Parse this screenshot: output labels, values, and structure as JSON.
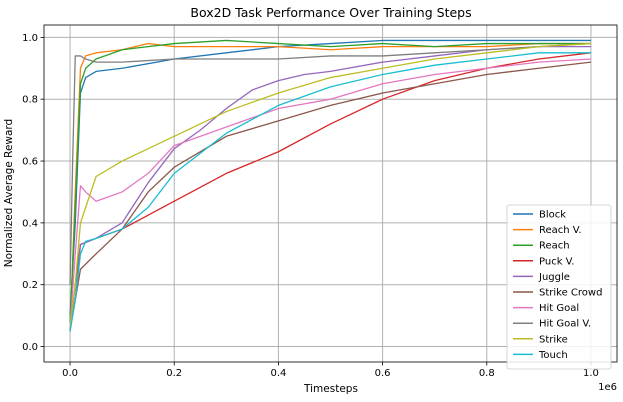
{
  "chart_data": {
    "type": "line",
    "title": "Box2D Task Performance Over Training Steps",
    "xlabel": "Timesteps",
    "ylabel": "Normalized Average Reward",
    "x_offset_label": "1e6",
    "xlim": [
      -0.05,
      1.05
    ],
    "ylim": [
      -0.05,
      1.04
    ],
    "xticks": [
      0.0,
      0.2,
      0.4,
      0.6,
      0.8,
      1.0
    ],
    "xtick_labels": [
      "0.0",
      "0.2",
      "0.4",
      "0.6",
      "0.8",
      "1.0"
    ],
    "yticks": [
      0.0,
      0.2,
      0.4,
      0.6,
      0.8,
      1.0
    ],
    "ytick_labels": [
      "0.0",
      "0.2",
      "0.4",
      "0.6",
      "0.8",
      "1.0"
    ],
    "grid": true,
    "legend_position": "lower-right",
    "series": [
      {
        "name": "Block",
        "color": "#1f77b4",
        "x": [
          0,
          0.01,
          0.02,
          0.03,
          0.05,
          0.1,
          0.2,
          0.3,
          0.4,
          0.5,
          0.6,
          0.7,
          0.8,
          0.9,
          1.0
        ],
        "y": [
          0.1,
          0.4,
          0.82,
          0.87,
          0.89,
          0.9,
          0.93,
          0.95,
          0.97,
          0.98,
          0.99,
          0.99,
          0.99,
          0.99,
          0.99
        ]
      },
      {
        "name": "Reach V.",
        "color": "#ff7f0e",
        "x": [
          0,
          0.01,
          0.02,
          0.03,
          0.05,
          0.1,
          0.15,
          0.2,
          0.3,
          0.4,
          0.5,
          0.6,
          0.7,
          0.8,
          0.9,
          1.0
        ],
        "y": [
          0.05,
          0.5,
          0.9,
          0.94,
          0.95,
          0.96,
          0.98,
          0.97,
          0.97,
          0.97,
          0.96,
          0.97,
          0.97,
          0.97,
          0.98,
          0.98
        ]
      },
      {
        "name": "Reach",
        "color": "#2ca02c",
        "x": [
          0,
          0.01,
          0.02,
          0.03,
          0.05,
          0.1,
          0.2,
          0.3,
          0.4,
          0.5,
          0.6,
          0.7,
          0.8,
          0.9,
          1.0
        ],
        "y": [
          0.08,
          0.45,
          0.85,
          0.9,
          0.93,
          0.96,
          0.98,
          0.99,
          0.98,
          0.97,
          0.98,
          0.97,
          0.98,
          0.98,
          0.98
        ]
      },
      {
        "name": "Puck V.",
        "color": "#d62728",
        "x": [
          0,
          0.01,
          0.02,
          0.05,
          0.1,
          0.2,
          0.3,
          0.4,
          0.5,
          0.6,
          0.7,
          0.8,
          0.9,
          1.0
        ],
        "y": [
          0.05,
          0.2,
          0.33,
          0.35,
          0.38,
          0.47,
          0.56,
          0.63,
          0.72,
          0.8,
          0.86,
          0.9,
          0.93,
          0.95
        ]
      },
      {
        "name": "Juggle",
        "color": "#9467bd",
        "x": [
          0,
          0.01,
          0.02,
          0.05,
          0.1,
          0.15,
          0.2,
          0.25,
          0.3,
          0.35,
          0.4,
          0.45,
          0.5,
          0.6,
          0.7,
          0.8,
          0.9,
          1.0
        ],
        "y": [
          0.05,
          0.15,
          0.33,
          0.35,
          0.4,
          0.53,
          0.64,
          0.7,
          0.77,
          0.83,
          0.86,
          0.88,
          0.89,
          0.92,
          0.94,
          0.96,
          0.97,
          0.97
        ]
      },
      {
        "name": "Strike Crowd",
        "color": "#8c564b",
        "x": [
          0,
          0.01,
          0.02,
          0.05,
          0.1,
          0.15,
          0.2,
          0.3,
          0.4,
          0.5,
          0.6,
          0.7,
          0.8,
          0.9,
          1.0
        ],
        "y": [
          0.06,
          0.15,
          0.25,
          0.3,
          0.38,
          0.5,
          0.58,
          0.68,
          0.73,
          0.78,
          0.82,
          0.85,
          0.88,
          0.9,
          0.92
        ]
      },
      {
        "name": "Hit Goal",
        "color": "#e377c2",
        "x": [
          0,
          0.01,
          0.02,
          0.03,
          0.05,
          0.1,
          0.15,
          0.2,
          0.3,
          0.4,
          0.5,
          0.6,
          0.7,
          0.8,
          0.9,
          1.0
        ],
        "y": [
          0.06,
          0.3,
          0.52,
          0.5,
          0.47,
          0.5,
          0.56,
          0.65,
          0.71,
          0.77,
          0.8,
          0.85,
          0.88,
          0.9,
          0.92,
          0.93
        ]
      },
      {
        "name": "Hit Goal V.",
        "color": "#7f7f7f",
        "x": [
          0,
          0.005,
          0.01,
          0.02,
          0.03,
          0.05,
          0.1,
          0.2,
          0.3,
          0.4,
          0.5,
          0.6,
          0.7,
          0.8,
          0.9,
          1.0
        ],
        "y": [
          0.2,
          0.6,
          0.94,
          0.94,
          0.93,
          0.92,
          0.92,
          0.93,
          0.93,
          0.93,
          0.94,
          0.94,
          0.95,
          0.96,
          0.97,
          0.98
        ]
      },
      {
        "name": "Strike",
        "color": "#bcbd22",
        "x": [
          0,
          0.01,
          0.02,
          0.05,
          0.1,
          0.15,
          0.2,
          0.3,
          0.4,
          0.5,
          0.6,
          0.7,
          0.8,
          0.9,
          1.0
        ],
        "y": [
          0.06,
          0.2,
          0.4,
          0.55,
          0.6,
          0.64,
          0.68,
          0.76,
          0.82,
          0.87,
          0.9,
          0.93,
          0.95,
          0.97,
          0.98
        ]
      },
      {
        "name": "Touch",
        "color": "#17becf",
        "x": [
          0,
          0.01,
          0.02,
          0.03,
          0.05,
          0.1,
          0.15,
          0.2,
          0.3,
          0.4,
          0.5,
          0.6,
          0.7,
          0.8,
          0.9,
          1.0
        ],
        "y": [
          0.05,
          0.15,
          0.3,
          0.34,
          0.35,
          0.38,
          0.45,
          0.56,
          0.69,
          0.78,
          0.84,
          0.88,
          0.91,
          0.93,
          0.95,
          0.95
        ]
      }
    ]
  }
}
